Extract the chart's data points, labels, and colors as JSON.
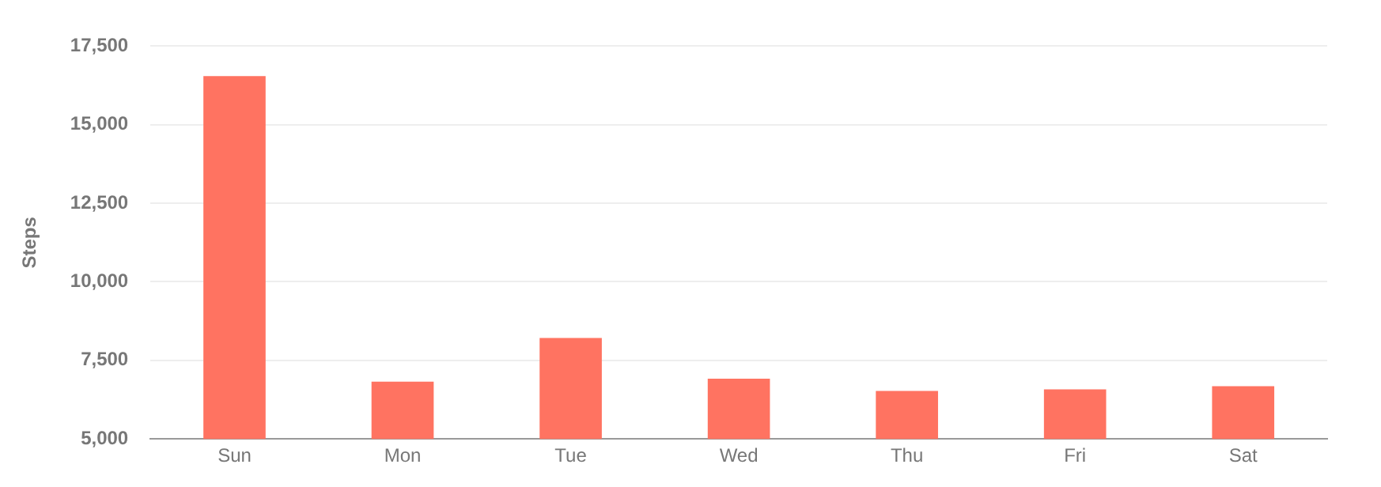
{
  "chart_data": {
    "type": "bar",
    "ylabel": "Steps",
    "categories": [
      "Sun",
      "Mon",
      "Tue",
      "Wed",
      "Thu",
      "Fri",
      "Sat"
    ],
    "values": [
      16550,
      6820,
      8210,
      6920,
      6530,
      6580,
      6680
    ],
    "color": "#ff7361",
    "ylim": [
      5000,
      17500
    ],
    "yticks": [
      {
        "value": 5000,
        "label": "5,000"
      },
      {
        "value": 7500,
        "label": "7,500"
      },
      {
        "value": 10000,
        "label": "10,000"
      },
      {
        "value": 12500,
        "label": "12,500"
      },
      {
        "value": 15000,
        "label": "15,000"
      },
      {
        "value": 17500,
        "label": "17,500"
      }
    ],
    "grid": "y",
    "legend": false
  }
}
